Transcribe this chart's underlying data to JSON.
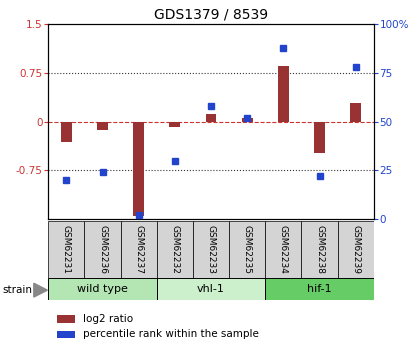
{
  "title": "GDS1379 / 8539",
  "samples": [
    "GSM62231",
    "GSM62236",
    "GSM62237",
    "GSM62232",
    "GSM62233",
    "GSM62235",
    "GSM62234",
    "GSM62238",
    "GSM62239"
  ],
  "log2_ratio": [
    -0.32,
    -0.13,
    -1.45,
    -0.08,
    0.12,
    0.05,
    0.85,
    -0.48,
    0.28
  ],
  "percentile_rank": [
    20,
    24,
    2,
    30,
    58,
    52,
    88,
    22,
    78
  ],
  "groups": [
    {
      "label": "wild type",
      "start": 0,
      "end": 3,
      "color": "#b3e6b3"
    },
    {
      "label": "vhl-1",
      "start": 3,
      "end": 6,
      "color": "#ccf0cc"
    },
    {
      "label": "hif-1",
      "start": 6,
      "end": 9,
      "color": "#66cc66"
    }
  ],
  "ylim_left": [
    -1.5,
    1.5
  ],
  "ylim_right": [
    0,
    100
  ],
  "yticks_left": [
    -0.75,
    0,
    0.75,
    1.5
  ],
  "ytick_labels_left": [
    "-0.75",
    "0",
    "0.75",
    "1.5"
  ],
  "yticks_right": [
    0,
    25,
    50,
    75,
    100
  ],
  "ytick_labels_right": [
    "0",
    "25",
    "50",
    "75",
    "100%"
  ],
  "bar_color": "#993333",
  "dot_color": "#2244cc",
  "zero_line_color": "#cc3333",
  "dot_line_color": "#555555",
  "strain_label": "strain",
  "legend_log2": "log2 ratio",
  "legend_pct": "percentile rank within the sample",
  "bar_width": 0.3
}
